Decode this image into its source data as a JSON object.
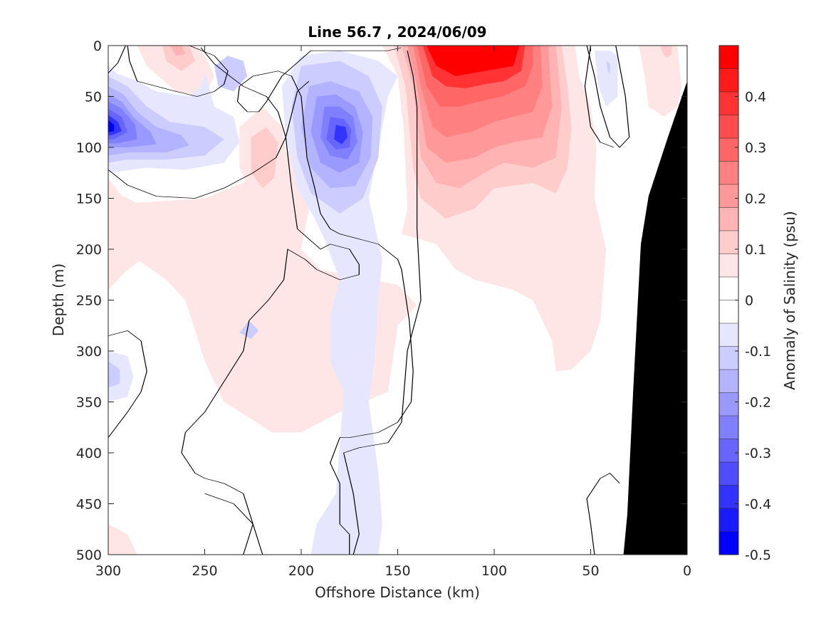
{
  "chart_data": {
    "type": "contour",
    "title": "Line 56.7 , 2024/06/09",
    "xlabel": "Offshore Distance (km)",
    "ylabel": "Depth (m)",
    "colorbar_label": "Anomaly of Salinity (psu)",
    "xlim": [
      300,
      0
    ],
    "ylim": [
      500,
      0
    ],
    "x_reversed": true,
    "y_reversed": true,
    "xticks": [
      300,
      250,
      200,
      150,
      100,
      50,
      0
    ],
    "xtick_labels": [
      "300",
      "250",
      "200",
      "150",
      "100",
      "50",
      "0"
    ],
    "yticks": [
      0,
      50,
      100,
      150,
      200,
      250,
      300,
      350,
      400,
      450,
      500
    ],
    "ytick_labels": [
      "0",
      "50",
      "100",
      "150",
      "200",
      "250",
      "300",
      "350",
      "400",
      "450",
      "500"
    ],
    "colorbar_range": [
      -0.5,
      0.5
    ],
    "colorbar_ticks": [
      0.4,
      0.3,
      0.2,
      0.1,
      0,
      -0.1,
      -0.2,
      -0.3,
      -0.4,
      -0.5
    ],
    "colorbar_tick_labels": [
      "0.4",
      "0.3",
      "0.2",
      "0.1",
      "0",
      "-0.1",
      "-0.2",
      "-0.3",
      "-0.4",
      "-0.5"
    ],
    "contour_interval": 0.05,
    "colormap_levels": [
      "#ff0000",
      "#ff1a1a",
      "#ff3333",
      "#ff4d4d",
      "#ff6666",
      "#ff8080",
      "#ff9999",
      "#ffb3b3",
      "#ffcccc",
      "#ffe6e6",
      "#ffffff",
      "#ffffff",
      "#e6e6ff",
      "#ccccff",
      "#b3b3ff",
      "#9999ff",
      "#8080ff",
      "#6666ff",
      "#4d4dff",
      "#3333ff",
      "#1a1aff",
      "#0000ff"
    ],
    "zero_contour_color": "#000000",
    "bathymetry_color": "#000000",
    "bathymetry": [
      {
        "x": 0,
        "depth": 35
      },
      {
        "x": 10,
        "depth": 90
      },
      {
        "x": 20,
        "depth": 148
      },
      {
        "x": 24,
        "depth": 195
      },
      {
        "x": 28,
        "depth": 340
      },
      {
        "x": 31,
        "depth": 460
      },
      {
        "x": 33,
        "depth": 500
      }
    ],
    "features": [
      {
        "kind": "positive",
        "peak_anomaly": 0.5,
        "x_range": [
          50,
          150
        ],
        "depth_range": [
          0,
          320
        ],
        "core": {
          "x": 110,
          "depth": 30
        }
      },
      {
        "kind": "negative",
        "peak_anomaly": -0.4,
        "x_range": [
          145,
          210
        ],
        "depth_range": [
          10,
          500
        ],
        "core": {
          "x": 180,
          "depth": 90
        }
      },
      {
        "kind": "negative",
        "peak_anomaly": -0.5,
        "x_range": [
          240,
          300
        ],
        "depth_range": [
          20,
          130
        ],
        "core": {
          "x": 295,
          "depth": 80
        }
      },
      {
        "kind": "negative",
        "peak_anomaly": -0.15,
        "x_range": [
          285,
          300
        ],
        "depth_range": [
          310,
          350
        ],
        "core": {
          "x": 293,
          "depth": 325
        }
      },
      {
        "kind": "positive",
        "peak_anomaly": 0.2,
        "x_range": [
          255,
          280
        ],
        "depth_range": [
          0,
          60
        ],
        "core": {
          "x": 265,
          "depth": 10
        }
      },
      {
        "kind": "positive",
        "peak_anomaly": 0.1,
        "x_range": [
          210,
          300
        ],
        "depth_range": [
          80,
          380
        ],
        "core": {
          "x": 220,
          "depth": 110
        }
      },
      {
        "kind": "negative",
        "peak_anomaly": -0.1,
        "x_range": [
          36,
          48
        ],
        "depth_range": [
          5,
          60
        ],
        "core": {
          "x": 41,
          "depth": 20
        }
      },
      {
        "kind": "positive",
        "peak_anomaly": 0.15,
        "x_range": [
          0,
          25
        ],
        "depth_range": [
          0,
          60
        ],
        "core": {
          "x": 10,
          "depth": 10
        }
      }
    ]
  }
}
